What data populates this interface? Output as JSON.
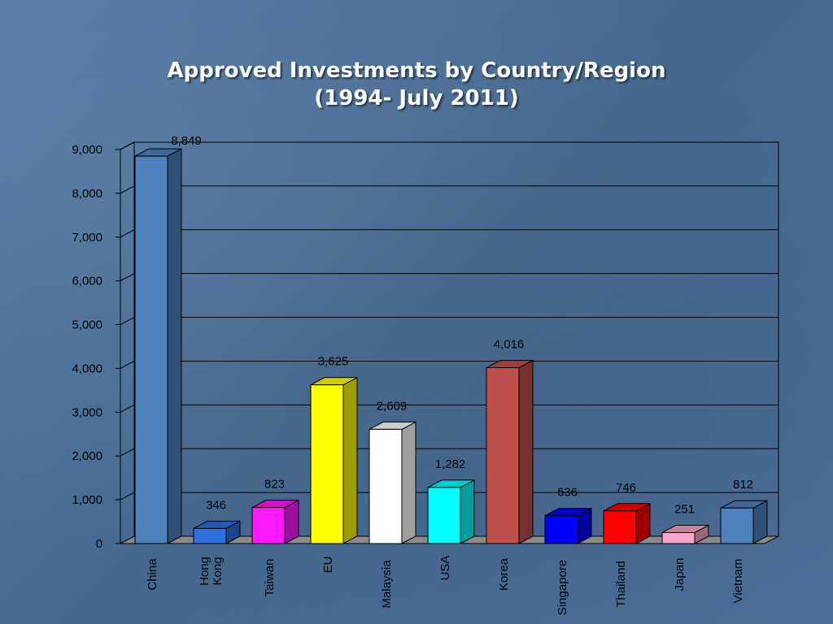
{
  "slide": {
    "title_line1": "Approved Investments by Country/Region",
    "title_line2": "(1994- July 2011)"
  },
  "chart_data": {
    "type": "bar",
    "title": "Approved Investments by Country/Region (1994- July 2011)",
    "categories": [
      "China",
      "Hong Kong",
      "Taiwan",
      "EU",
      "Malaysia",
      "USA",
      "Korea",
      "Singapore",
      "Thailand",
      "Japan",
      "Vietnam"
    ],
    "values": [
      8849,
      346,
      823,
      3625,
      2609,
      1282,
      4016,
      636,
      746,
      251,
      812
    ],
    "value_labels": [
      "8,849",
      "346",
      "823",
      "3,625",
      "2,609",
      "1,282",
      "4,016",
      "636",
      "746",
      "251",
      "812"
    ],
    "colors": [
      "#4f81bd",
      "#2f6fe0",
      "#ff19ff",
      "#ffff00",
      "#ffffff",
      "#00ffff",
      "#c0504d",
      "#0000ff",
      "#ff0000",
      "#f4a6c6",
      "#4f81bd"
    ],
    "yticks": [
      0,
      1000,
      2000,
      3000,
      4000,
      5000,
      6000,
      7000,
      8000,
      9000
    ],
    "ytick_labels": [
      "0",
      "1,000",
      "2,000",
      "3,000",
      "4,000",
      "5,000",
      "6,000",
      "7,000",
      "8,000",
      "9,000"
    ],
    "ylim": [
      0,
      9000
    ],
    "xlabel": "",
    "ylabel": "",
    "grid": true,
    "style": "3d-column"
  }
}
